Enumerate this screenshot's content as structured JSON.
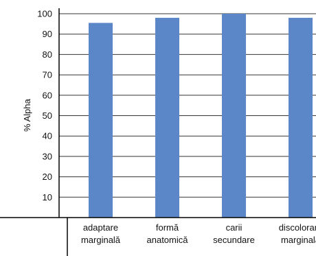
{
  "chart_data": {
    "type": "bar",
    "title": "",
    "xlabel": "",
    "ylabel": "% Alpha",
    "ylim": [
      0,
      100
    ],
    "yticks": [
      10,
      20,
      30,
      40,
      50,
      60,
      70,
      80,
      90,
      100
    ],
    "categories": [
      [
        "adaptare",
        "marginală"
      ],
      [
        "formă",
        "anatomică"
      ],
      [
        "carii",
        "secundare"
      ],
      [
        "discolorare",
        "marginală"
      ]
    ],
    "values": [
      95.5,
      98,
      100,
      98
    ],
    "grid": true,
    "legend": "none",
    "colors": {
      "bar": "#5b87c8",
      "grid": "#333333",
      "axis": "#000000"
    }
  }
}
